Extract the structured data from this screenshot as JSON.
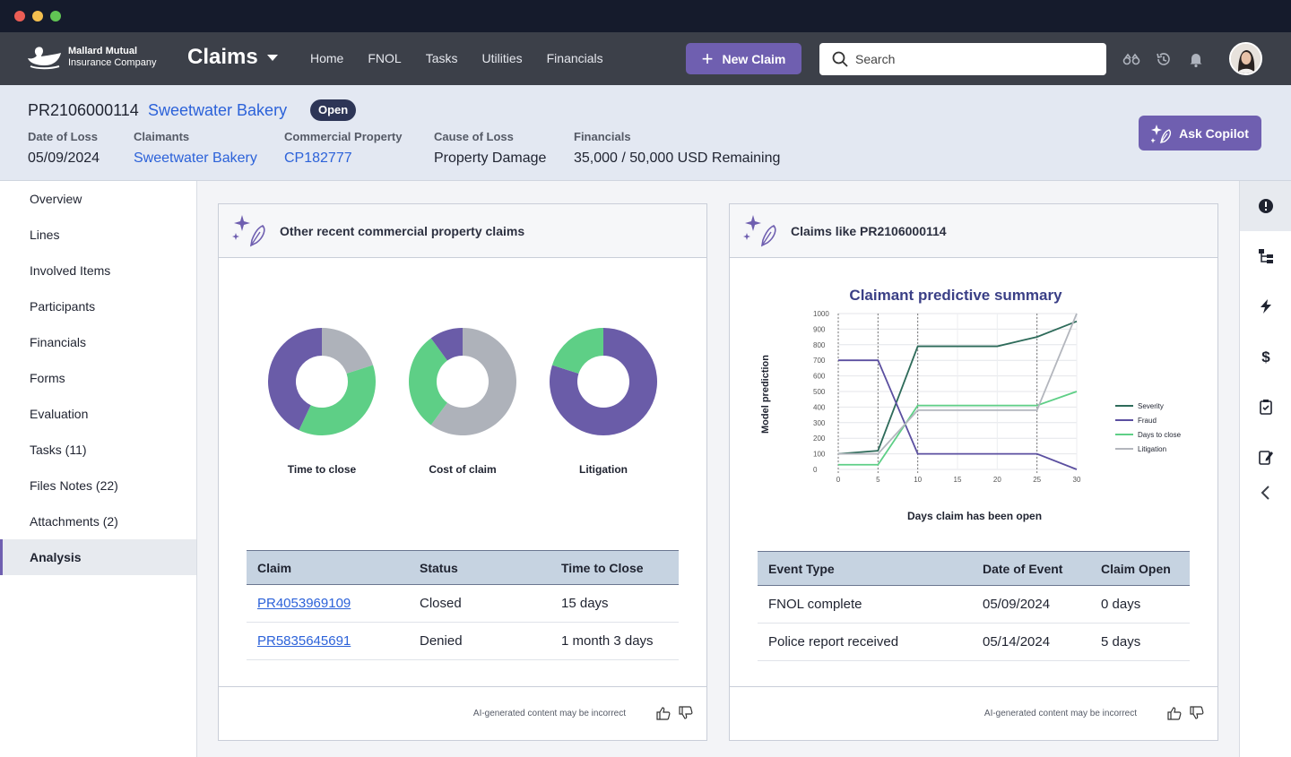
{
  "navbar": {
    "company_line1": "Mallard Mutual",
    "company_line2": "Insurance Company",
    "app_title": "Claims",
    "links": [
      "Home",
      "FNOL",
      "Tasks",
      "Utilities",
      "Financials"
    ],
    "new_claim_label": "New Claim",
    "search_placeholder": "Search"
  },
  "claim": {
    "id": "PR2106000114",
    "name": "Sweetwater Bakery",
    "status": "Open",
    "fields": {
      "date_of_loss": {
        "label": "Date of Loss",
        "value": "05/09/2024"
      },
      "claimants": {
        "label": "Claimants",
        "value": "Sweetwater Bakery"
      },
      "commercial_property": {
        "label": "Commercial Property",
        "value": "CP182777"
      },
      "cause_of_loss": {
        "label": "Cause of Loss",
        "value": "Property Damage"
      },
      "financials": {
        "label": "Financials",
        "value": "35,000 / 50,000 USD Remaining"
      }
    },
    "copilot_label": "Ask Copilot"
  },
  "sidebar": {
    "items": [
      "Overview",
      "Lines",
      "Involved Items",
      "Participants",
      "Financials",
      "Forms",
      "Evaluation",
      "Tasks (11)",
      "Files Notes (22)",
      "Attachments (2)",
      "Analysis"
    ],
    "active": "Analysis"
  },
  "left_card": {
    "title": "Other recent commercial property claims",
    "donuts": [
      {
        "label": "Time to close",
        "segments": [
          {
            "color": "#aeb2ba",
            "value": 20
          },
          {
            "color": "#5ecf86",
            "value": 37
          },
          {
            "color": "#6a5ca8",
            "value": 43
          }
        ]
      },
      {
        "label": "Cost of claim",
        "segments": [
          {
            "color": "#aeb2ba",
            "value": 60
          },
          {
            "color": "#5ecf86",
            "value": 30
          },
          {
            "color": "#6a5ca8",
            "value": 10
          }
        ]
      },
      {
        "label": "Litigation",
        "segments": [
          {
            "color": "#6a5ca8",
            "value": 80
          },
          {
            "color": "#5ecf86",
            "value": 20
          }
        ]
      }
    ],
    "table": {
      "headers": [
        "Claim",
        "Status",
        "Time to Close"
      ],
      "rows": [
        {
          "claim": "PR4053969109",
          "status": "Closed",
          "time": "15 days"
        },
        {
          "claim": "PR5835645691",
          "status": "Denied",
          "time": "1 month 3 days"
        }
      ]
    },
    "disclaimer": "AI-generated content may be incorrect"
  },
  "right_card": {
    "title": "Claims like PR2106000114",
    "table": {
      "headers": [
        "Event Type",
        "Date of Event",
        "Claim Open"
      ],
      "rows": [
        {
          "event": "FNOL complete",
          "date": "05/09/2024",
          "open": "0 days"
        },
        {
          "event": "Police report received",
          "date": "05/14/2024",
          "open": "5 days"
        }
      ]
    },
    "disclaimer": "AI-generated content may be incorrect"
  },
  "chart_data": {
    "type": "line",
    "title": "Claimant predictive summary",
    "xlabel": "Days claim has been open",
    "ylabel": "Model prediction",
    "x_ticks": [
      0,
      5,
      10,
      15,
      20,
      25,
      30
    ],
    "y_ticks": [
      0,
      100,
      200,
      300,
      400,
      500,
      600,
      700,
      800,
      900,
      1000
    ],
    "xlim": [
      0,
      30
    ],
    "ylim": [
      0,
      1000
    ],
    "vertical_markers": [
      0,
      5,
      10,
      25
    ],
    "series": [
      {
        "name": "Severity",
        "color": "#2e6b5a",
        "x": [
          0,
          5,
          10,
          20,
          25,
          30
        ],
        "y": [
          100,
          120,
          790,
          790,
          850,
          950
        ]
      },
      {
        "name": "Fraud",
        "color": "#5b4fa0",
        "x": [
          0,
          5,
          10,
          25,
          30
        ],
        "y": [
          700,
          700,
          100,
          100,
          0
        ]
      },
      {
        "name": "Days to close",
        "color": "#5ecf86",
        "x": [
          0,
          5,
          10,
          25,
          30
        ],
        "y": [
          30,
          30,
          410,
          410,
          500
        ]
      },
      {
        "name": "Litigation",
        "color": "#b3b6bd",
        "x": [
          0,
          5,
          10,
          25,
          30
        ],
        "y": [
          100,
          100,
          380,
          380,
          1000
        ]
      }
    ]
  }
}
